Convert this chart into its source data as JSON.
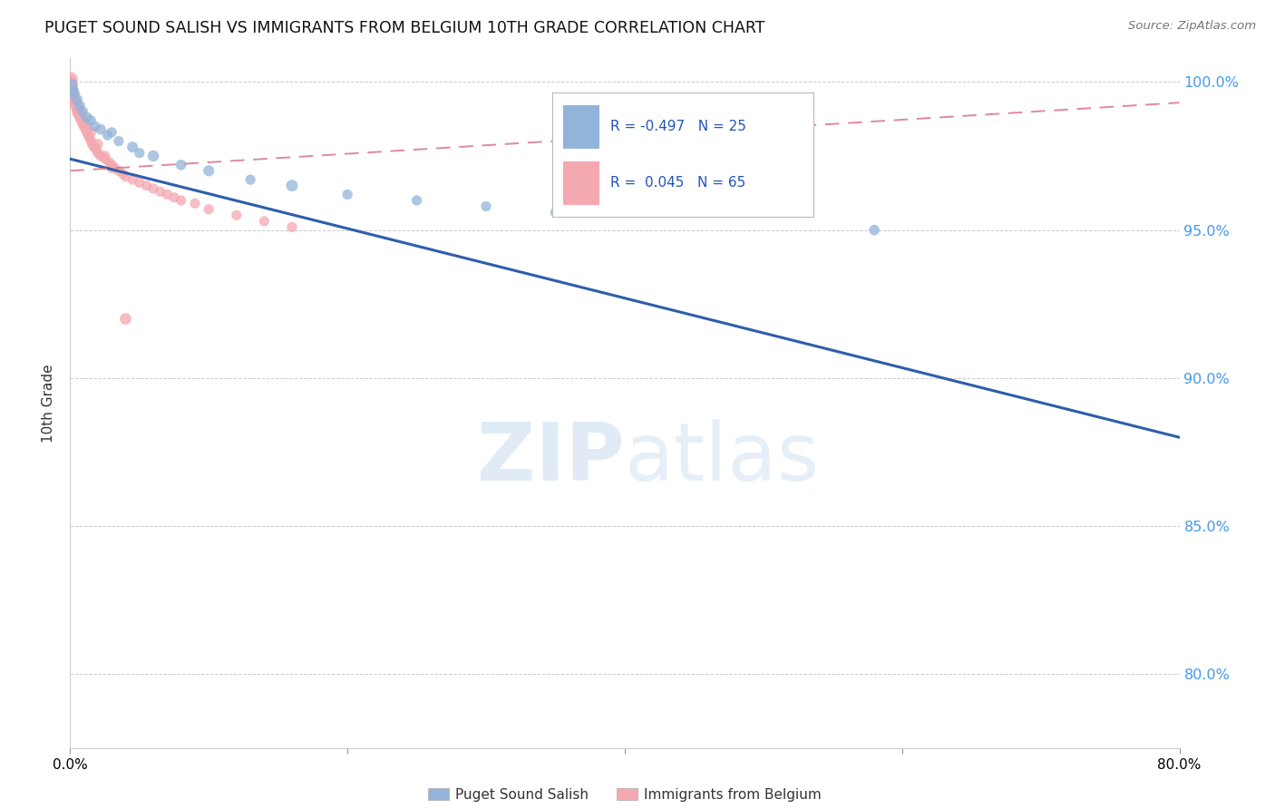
{
  "title": "PUGET SOUND SALISH VS IMMIGRANTS FROM BELGIUM 10TH GRADE CORRELATION CHART",
  "source": "Source: ZipAtlas.com",
  "xlabel_blue": "Puget Sound Salish",
  "xlabel_pink": "Immigrants from Belgium",
  "ylabel": "10th Grade",
  "watermark_zip": "ZIP",
  "watermark_atlas": "atlas",
  "R_blue": -0.497,
  "N_blue": 25,
  "R_pink": 0.045,
  "N_pink": 65,
  "xlim": [
    0.0,
    0.8
  ],
  "ylim": [
    0.775,
    1.008
  ],
  "yticks": [
    0.8,
    0.85,
    0.9,
    0.95,
    1.0
  ],
  "ytick_labels": [
    "80.0%",
    "85.0%",
    "90.0%",
    "95.0%",
    "100.0%"
  ],
  "xticks": [
    0.0,
    0.2,
    0.4,
    0.6,
    0.8
  ],
  "xtick_labels": [
    "0.0%",
    "",
    "",
    "",
    "80.0%"
  ],
  "blue_color": "#92B4D9",
  "pink_color": "#F4A8B0",
  "trend_blue_color": "#2E5EAA",
  "trend_pink_color": "#D9748A",
  "blue_x": [
    0.001,
    0.002,
    0.003,
    0.005,
    0.007,
    0.009,
    0.012,
    0.015,
    0.018,
    0.022,
    0.027,
    0.035,
    0.045,
    0.06,
    0.08,
    0.1,
    0.13,
    0.16,
    0.2,
    0.25,
    0.3,
    0.35,
    0.58,
    0.03,
    0.05
  ],
  "blue_y": [
    0.999,
    0.997,
    0.996,
    0.994,
    0.992,
    0.99,
    0.988,
    0.987,
    0.985,
    0.984,
    0.982,
    0.98,
    0.978,
    0.975,
    0.972,
    0.97,
    0.967,
    0.965,
    0.962,
    0.96,
    0.958,
    0.956,
    0.95,
    0.983,
    0.976
  ],
  "blue_s": [
    90,
    70,
    70,
    70,
    65,
    65,
    70,
    60,
    60,
    65,
    60,
    60,
    70,
    75,
    65,
    70,
    60,
    80,
    60,
    60,
    60,
    60,
    65,
    60,
    60
  ],
  "pink_x": [
    0.0003,
    0.0005,
    0.001,
    0.001,
    0.002,
    0.002,
    0.002,
    0.003,
    0.003,
    0.004,
    0.004,
    0.005,
    0.005,
    0.006,
    0.007,
    0.008,
    0.009,
    0.01,
    0.01,
    0.011,
    0.012,
    0.013,
    0.014,
    0.015,
    0.016,
    0.017,
    0.018,
    0.019,
    0.02,
    0.022,
    0.025,
    0.028,
    0.03,
    0.032,
    0.035,
    0.038,
    0.04,
    0.045,
    0.05,
    0.055,
    0.06,
    0.065,
    0.07,
    0.075,
    0.08,
    0.09,
    0.1,
    0.12,
    0.14,
    0.16,
    0.001,
    0.002,
    0.003,
    0.004,
    0.005,
    0.006,
    0.007,
    0.008,
    0.01,
    0.012,
    0.015,
    0.02,
    0.025,
    0.03,
    0.04
  ],
  "pink_y": [
    1.001,
    1.0,
    0.999,
    0.998,
    0.997,
    0.996,
    0.995,
    0.994,
    0.993,
    0.993,
    0.992,
    0.991,
    0.99,
    0.989,
    0.988,
    0.987,
    0.986,
    0.986,
    0.985,
    0.984,
    0.983,
    0.982,
    0.981,
    0.98,
    0.979,
    0.978,
    0.978,
    0.977,
    0.976,
    0.975,
    0.974,
    0.973,
    0.972,
    0.971,
    0.97,
    0.969,
    0.968,
    0.967,
    0.966,
    0.965,
    0.964,
    0.963,
    0.962,
    0.961,
    0.96,
    0.959,
    0.957,
    0.955,
    0.953,
    0.951,
    0.997,
    0.996,
    0.994,
    0.993,
    0.992,
    0.991,
    0.99,
    0.989,
    0.987,
    0.985,
    0.983,
    0.979,
    0.975,
    0.971,
    0.92
  ],
  "pink_s": [
    120,
    100,
    90,
    90,
    80,
    85,
    80,
    80,
    75,
    75,
    70,
    75,
    70,
    70,
    65,
    65,
    65,
    65,
    65,
    60,
    60,
    60,
    60,
    60,
    60,
    60,
    60,
    60,
    60,
    60,
    60,
    60,
    60,
    60,
    60,
    60,
    60,
    60,
    60,
    60,
    60,
    60,
    60,
    60,
    60,
    60,
    60,
    60,
    60,
    60,
    70,
    70,
    70,
    70,
    70,
    70,
    65,
    65,
    65,
    65,
    65,
    65,
    65,
    65,
    80
  ],
  "blue_trend_x": [
    0.0,
    0.8
  ],
  "blue_trend_y": [
    0.974,
    0.88
  ],
  "pink_trend_x": [
    0.0,
    0.8
  ],
  "pink_trend_y": [
    0.97,
    0.993
  ]
}
